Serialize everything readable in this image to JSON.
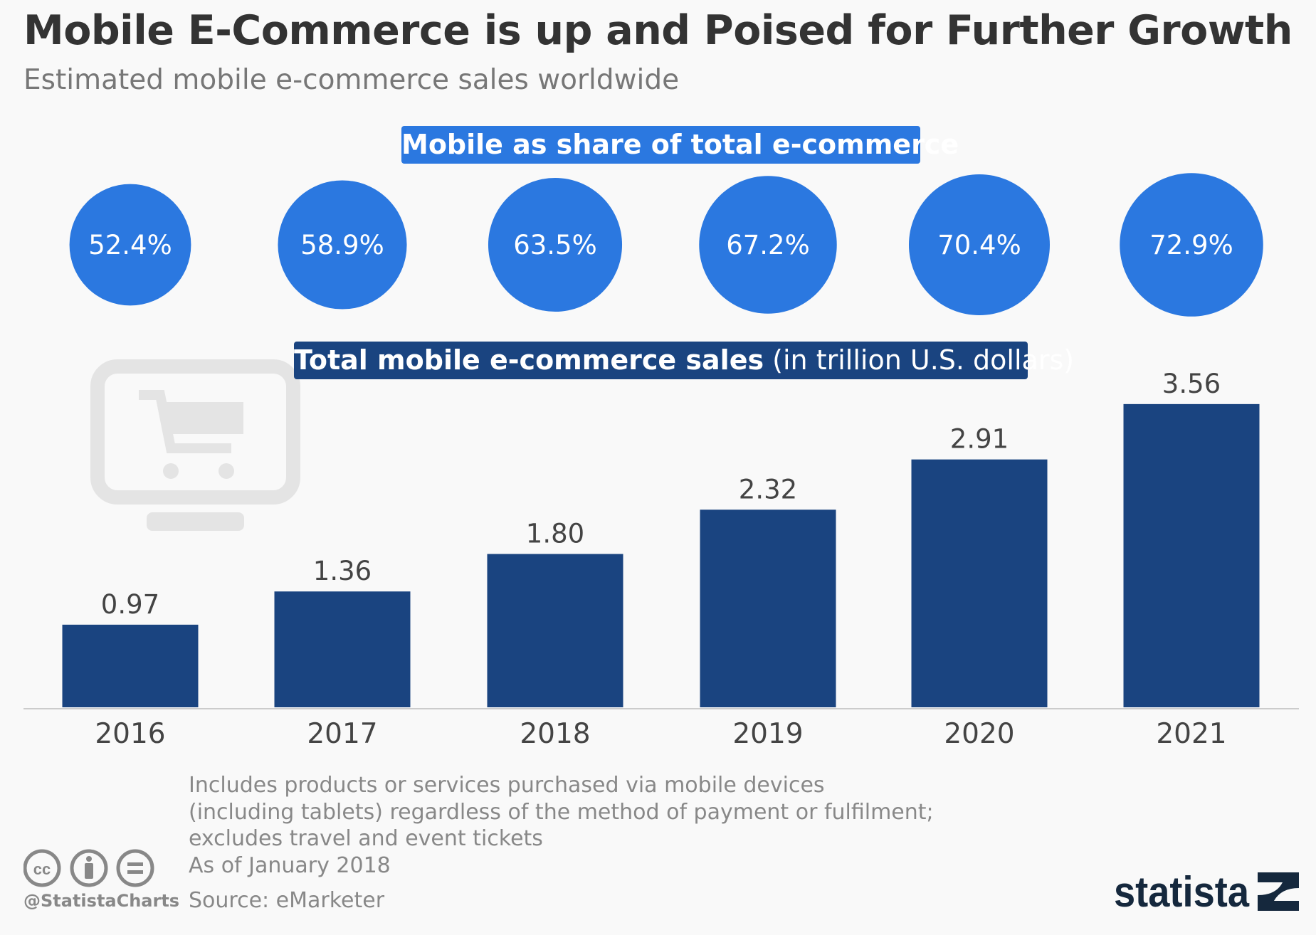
{
  "title": "Mobile E-Commerce is up and Poised for Further Growth",
  "subtitle": "Estimated mobile e-commerce sales worldwide",
  "share_label": "Mobile as share of total e-commerce",
  "sales_label_bold": "Total mobile e-commerce sales",
  "sales_label_unit": " (in trillion U.S. dollars)",
  "chart_data": {
    "type": "bar",
    "categories": [
      "2016",
      "2017",
      "2018",
      "2019",
      "2020",
      "2021"
    ],
    "series": [
      {
        "name": "Total mobile e-commerce sales",
        "values": [
          0.97,
          1.36,
          1.8,
          2.32,
          2.91,
          3.56
        ],
        "labels": [
          "0.97",
          "1.36",
          "1.80",
          "2.32",
          "2.91",
          "3.56"
        ]
      },
      {
        "name": "Mobile as share of total e-commerce",
        "values": [
          52.4,
          58.9,
          63.5,
          67.2,
          70.4,
          72.9
        ],
        "labels": [
          "52.4%",
          "58.9%",
          "63.5%",
          "67.2%",
          "70.4%",
          "72.9%"
        ]
      }
    ],
    "ylabel": "in trillion U.S. dollars",
    "ylim": [
      0,
      3.56
    ],
    "grid": false,
    "colors": {
      "bars": "#1a4480",
      "circles": "#2b78e0",
      "axis": "#cccccc",
      "background": "#f9f9f9"
    }
  },
  "footnotes": [
    "Includes products or services purchased via mobile devices",
    "(including tablets) regardless of the method of payment or fulfilment;",
    "excludes travel and event tickets",
    "As of January 2018",
    "Source: eMarketer"
  ],
  "handle": "@StatistaCharts",
  "logo_text": "statista",
  "icons": [
    "cart-monitor-icon",
    "cc-icon",
    "attribution-icon",
    "no-derivatives-icon"
  ]
}
